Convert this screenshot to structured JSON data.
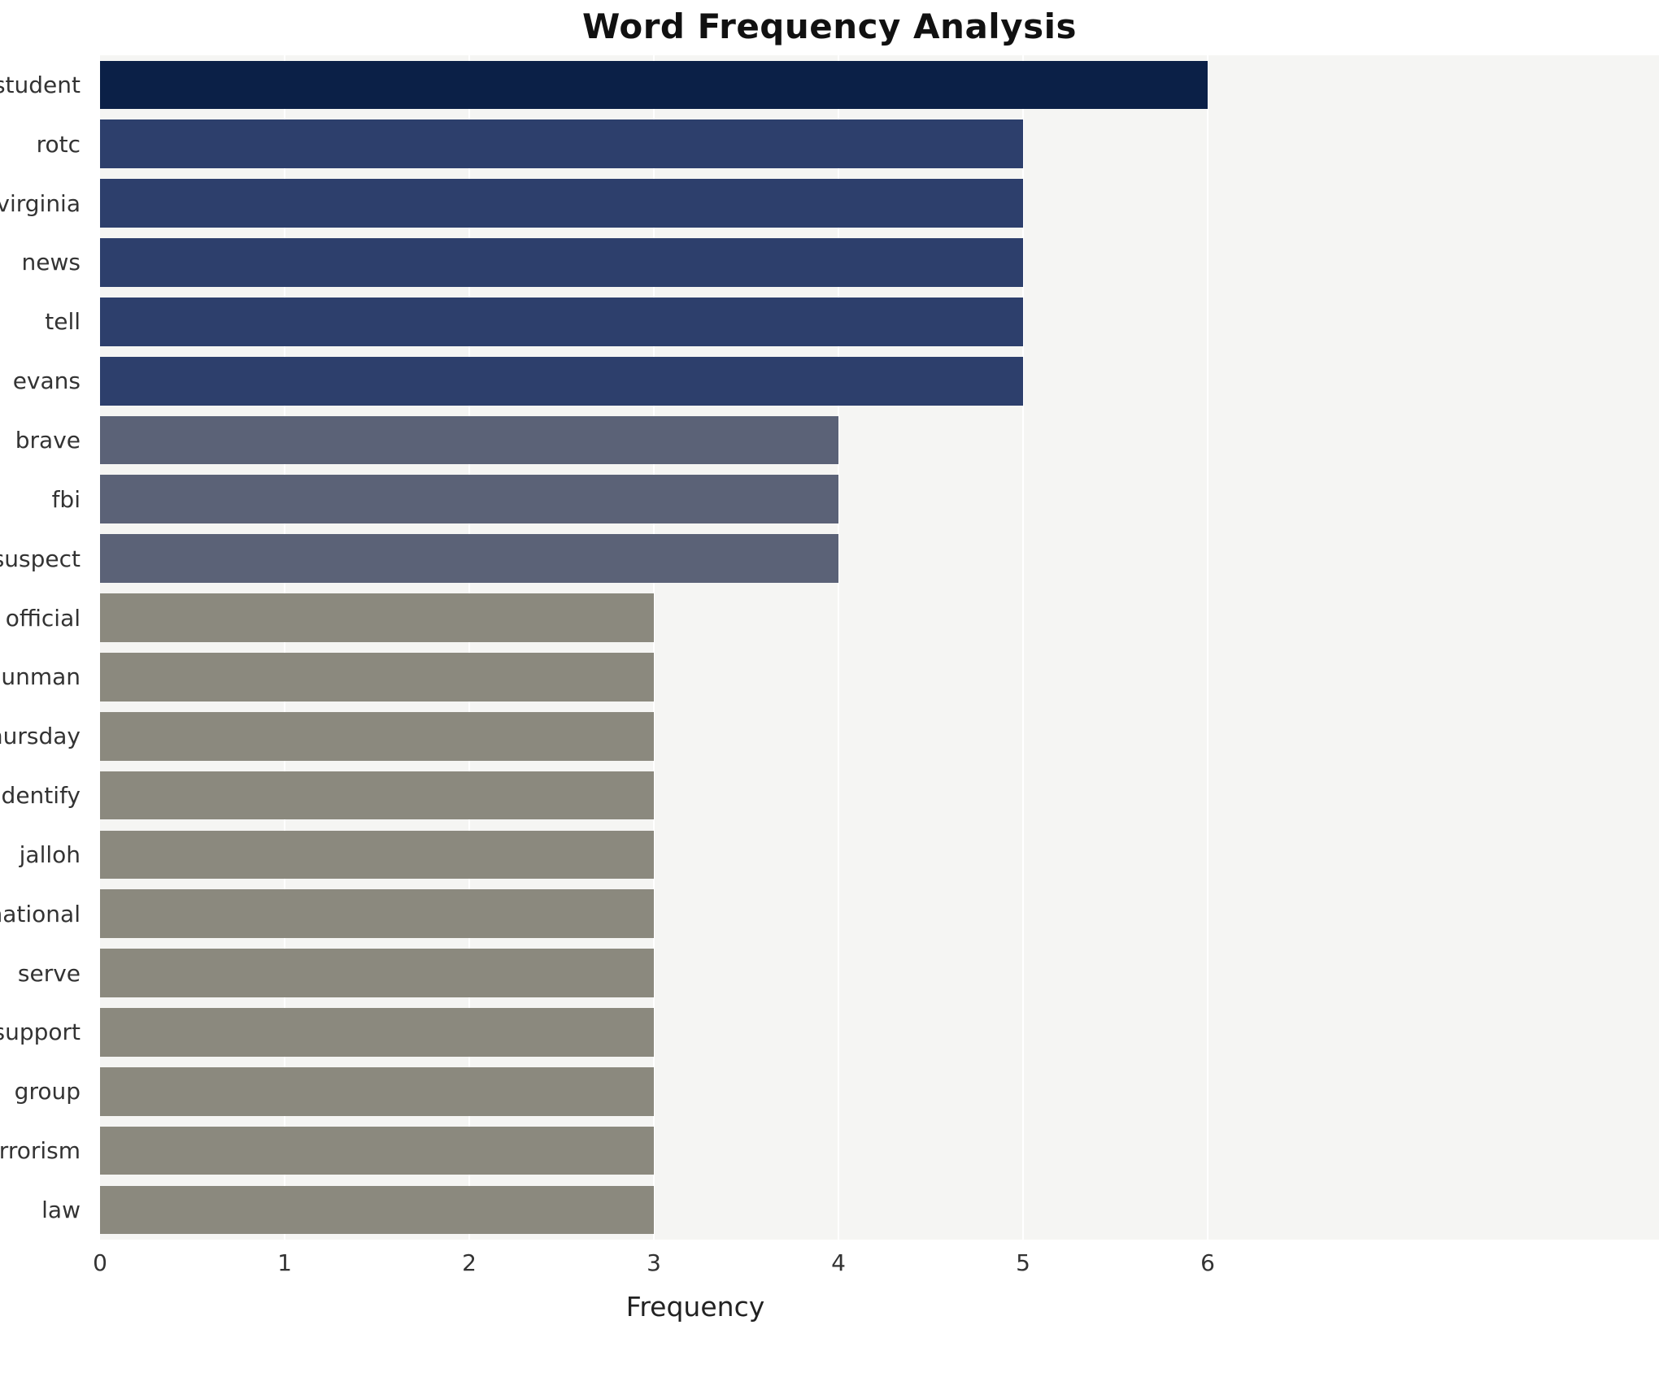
{
  "chart_data": {
    "type": "bar",
    "orientation": "horizontal",
    "title": "Word Frequency Analysis",
    "xlabel": "Frequency",
    "ylabel": "",
    "xlim": [
      0,
      6
    ],
    "x_ticks": [
      0,
      1,
      2,
      3,
      4,
      5,
      6
    ],
    "grid": true,
    "legend": false,
    "categories": [
      "student",
      "rotc",
      "virginia",
      "news",
      "tell",
      "evans",
      "brave",
      "fbi",
      "suspect",
      "official",
      "gunman",
      "thursday",
      "identify",
      "jalloh",
      "national",
      "serve",
      "support",
      "group",
      "terrorism",
      "law"
    ],
    "values": [
      6,
      5,
      5,
      5,
      5,
      5,
      4,
      4,
      4,
      3,
      3,
      3,
      3,
      3,
      3,
      3,
      3,
      3,
      3,
      3
    ],
    "colors": {
      "value_6": "#0b2047",
      "value_5": "#2d3f6c",
      "value_4": "#5b6277",
      "value_3": "#8b897e"
    },
    "plot_background": "#f5f5f3",
    "gridline_color": "#ffffff"
  }
}
